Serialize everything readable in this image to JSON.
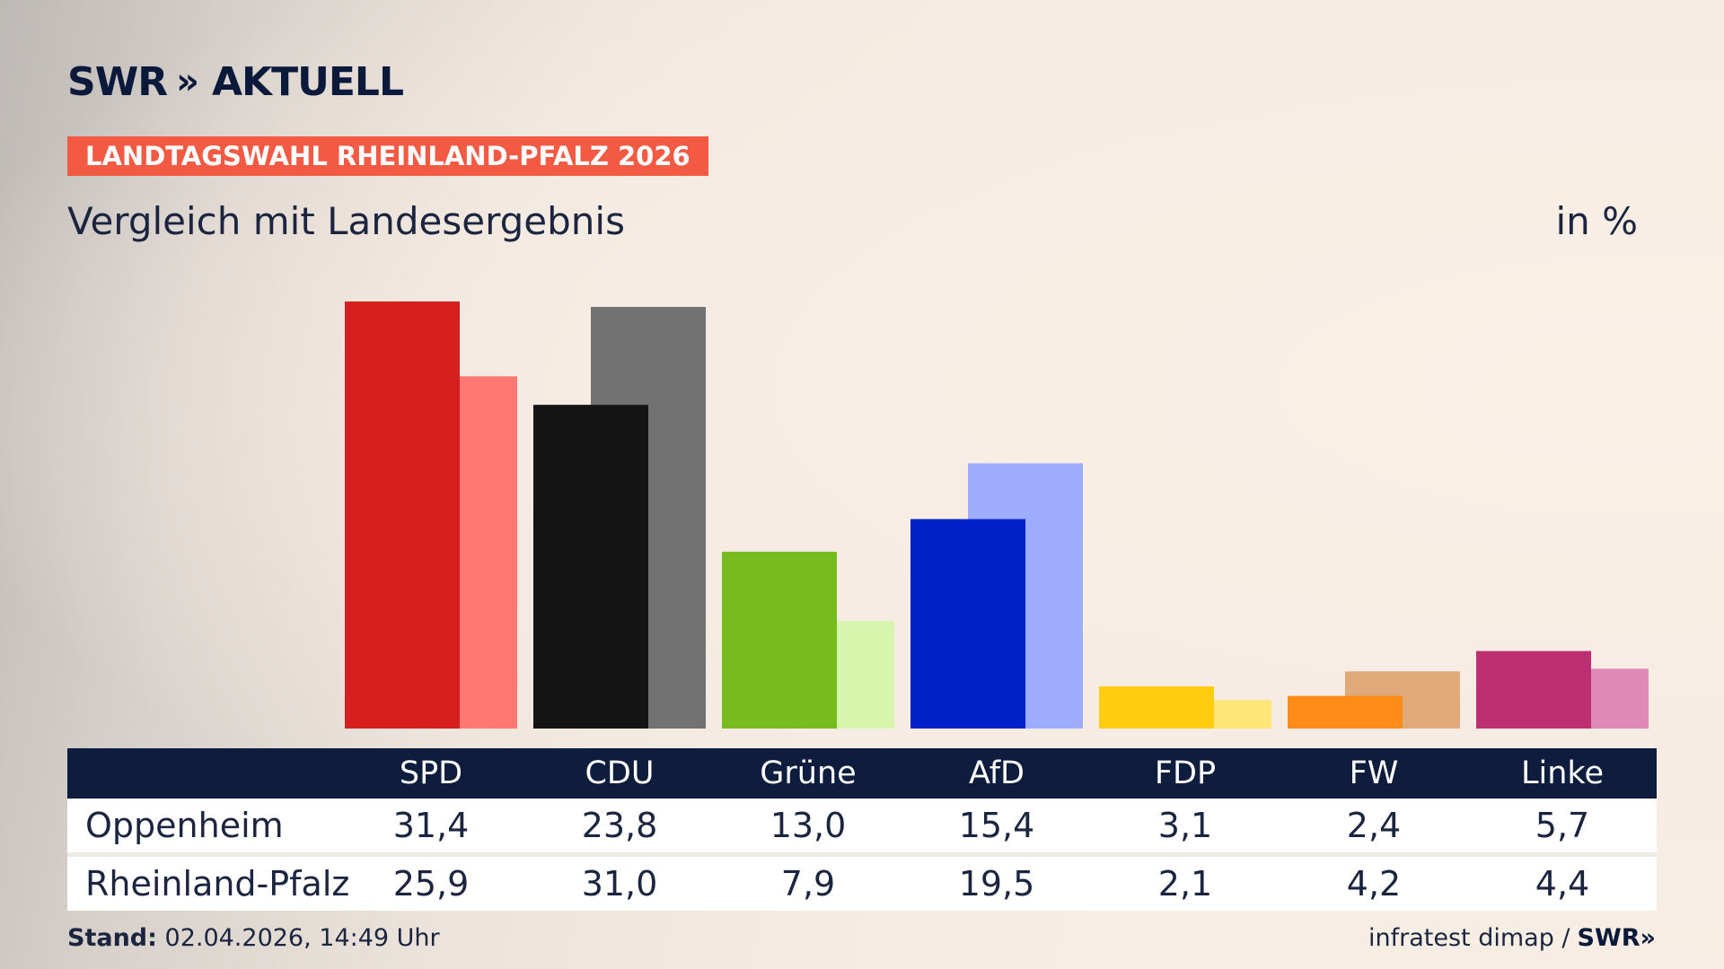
{
  "header": {
    "logo_text": "SWR",
    "logo_chevrons": "»",
    "logo_sub": "AKTUELL",
    "tag": "LANDTAGSWAHL RHEINLAND-PFALZ 2026",
    "subtitle": "Vergleich mit Landesergebnis",
    "unit": "in %"
  },
  "chart_data": {
    "type": "bar",
    "categories": [
      "SPD",
      "CDU",
      "Grüne",
      "AfD",
      "FDP",
      "FW",
      "Linke"
    ],
    "series": [
      {
        "name": "Oppenheim",
        "values": [
          31.4,
          23.8,
          13.0,
          15.4,
          3.1,
          2.4,
          5.7
        ],
        "colors": [
          "#d61f1f",
          "#141414",
          "#78bb1c",
          "#0021c8",
          "#ffcc0f",
          "#ff8c19",
          "#bc2f73"
        ]
      },
      {
        "name": "Rheinland-Pfalz",
        "values": [
          25.9,
          31.0,
          7.9,
          19.5,
          2.1,
          4.2,
          4.4
        ],
        "colors": [
          "#ff7871",
          "#727272",
          "#d8f5ad",
          "#9eacff",
          "#ffe677",
          "#dfa979",
          "#e089b5"
        ]
      }
    ],
    "ylim": [
      0,
      31.4
    ]
  },
  "table": {
    "headers": [
      "SPD",
      "CDU",
      "Grüne",
      "AfD",
      "FDP",
      "FW",
      "Linke"
    ],
    "rows": [
      {
        "label": "Oppenheim",
        "values": [
          "31,4",
          "23,8",
          "13,0",
          "15,4",
          "3,1",
          "2,4",
          "5,7"
        ]
      },
      {
        "label": "Rheinland-Pfalz",
        "values": [
          "25,9",
          "31,0",
          "7,9",
          "19,5",
          "2,1",
          "4,2",
          "4,4"
        ]
      }
    ]
  },
  "footer": {
    "stand_label": "Stand:",
    "stand_value": "02.04.2026, 14:49 Uhr",
    "source": "infratest dimap /",
    "brand": "SWR»"
  }
}
